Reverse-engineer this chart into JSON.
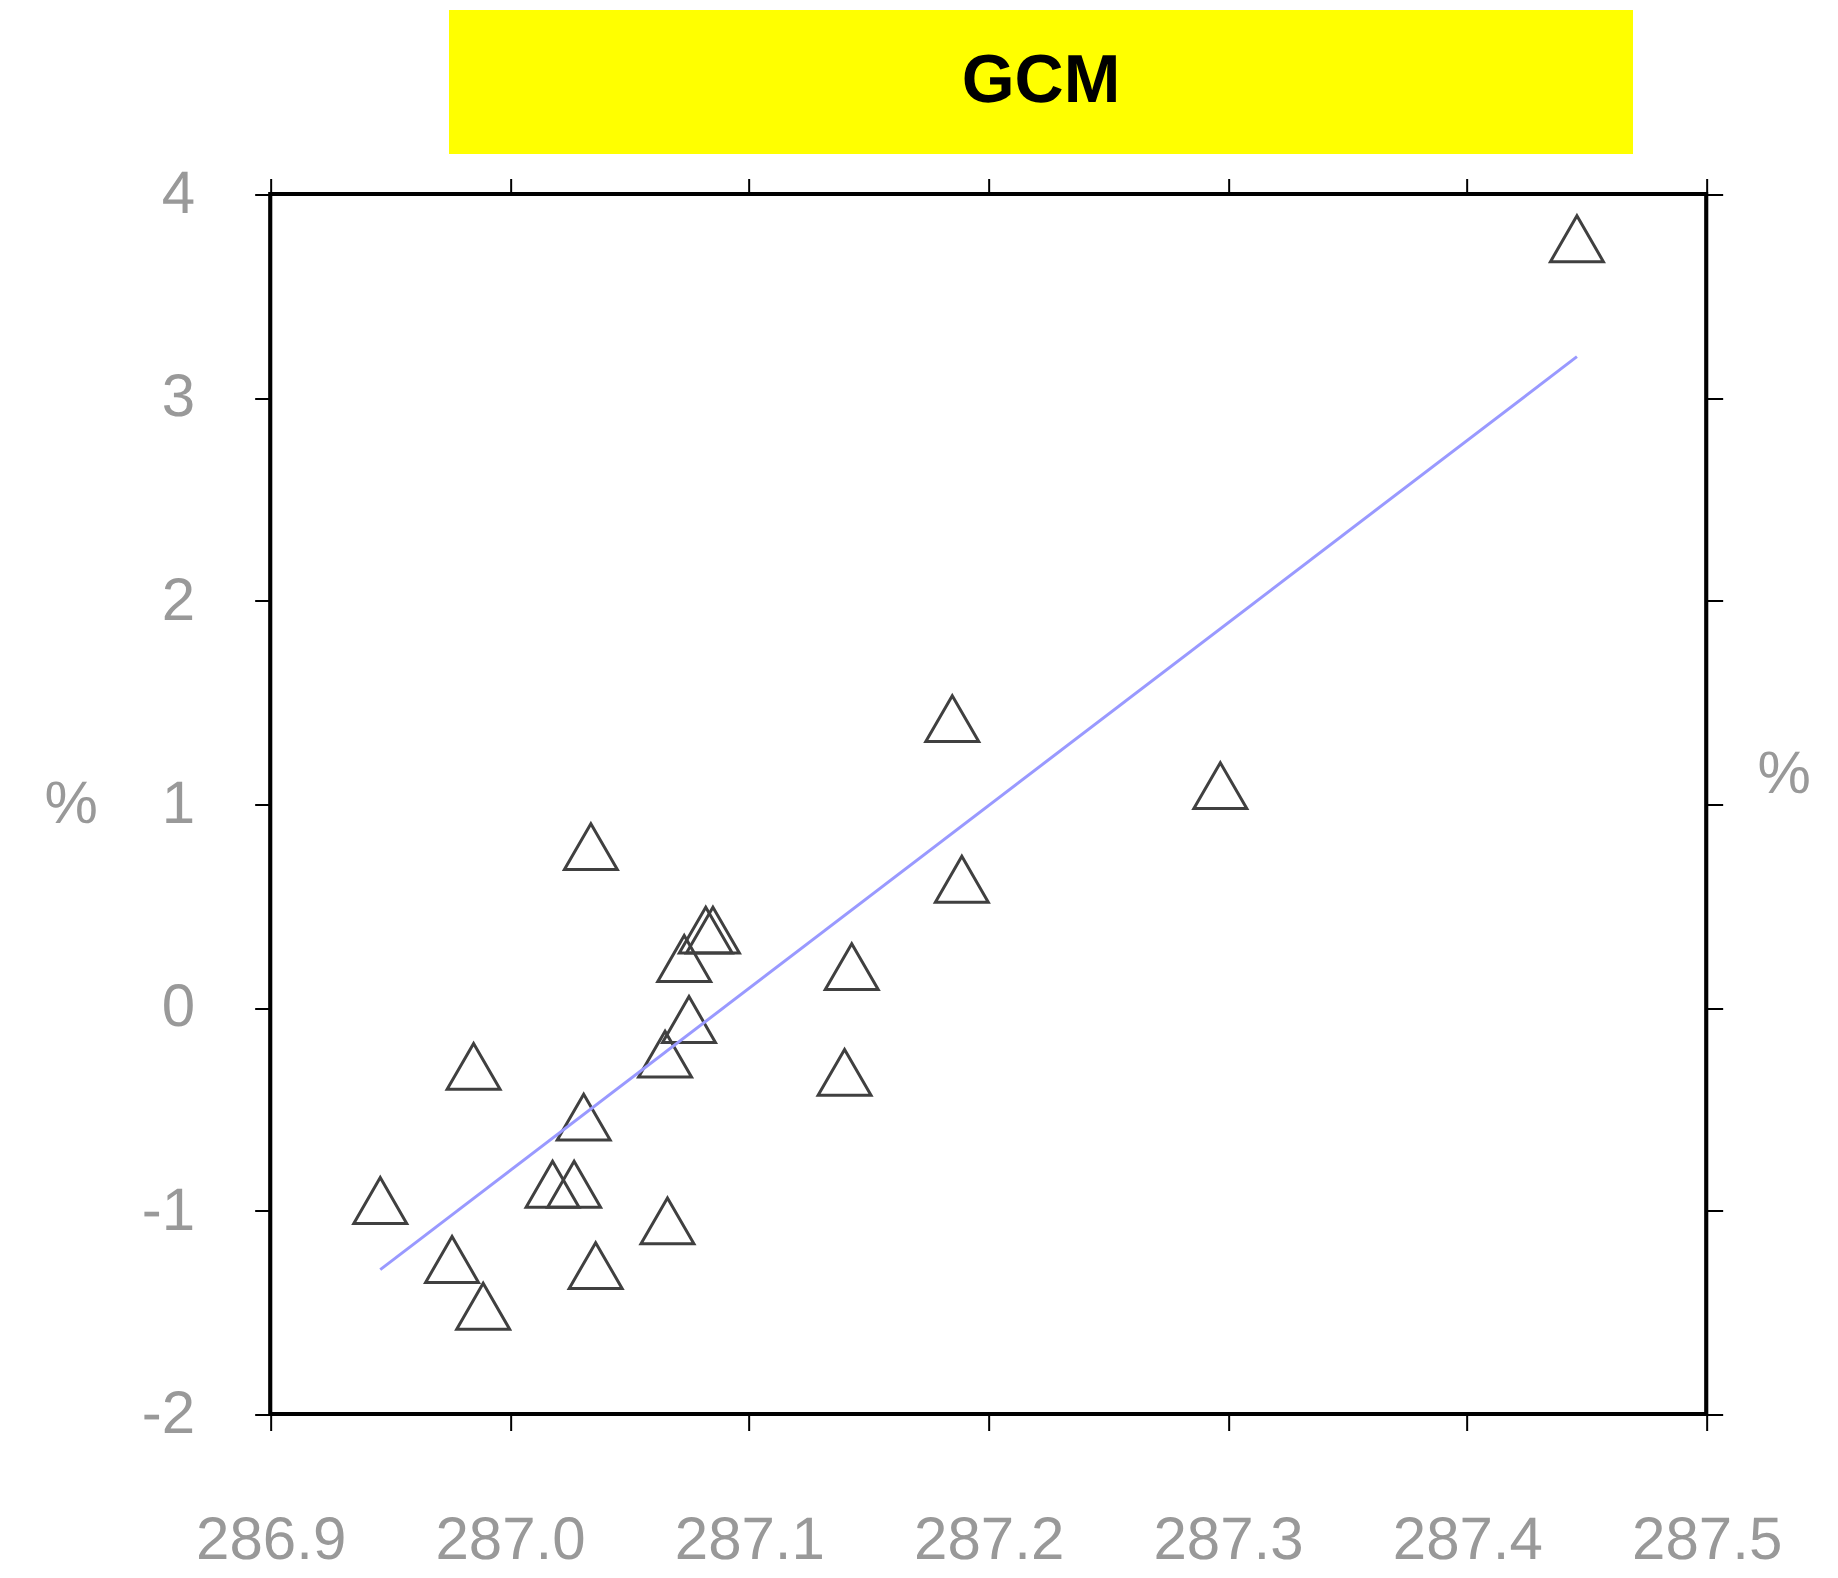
{
  "chart_data": {
    "type": "scatter",
    "title": "GCM",
    "ylabel": "%",
    "y2label": "%",
    "xlim": [
      286.9,
      287.5
    ],
    "xticks": [
      {
        "value": 286.9,
        "label": "286.9"
      },
      {
        "value": 287.0,
        "label": "287.0"
      },
      {
        "value": 287.1,
        "label": "287.1"
      },
      {
        "value": 287.2,
        "label": "287.2"
      },
      {
        "value": 287.3,
        "label": "287.3"
      },
      {
        "value": 287.4,
        "label": "287.4"
      },
      {
        "value": 287.5,
        "label": "287.5"
      }
    ],
    "ylim": [
      -2,
      4
    ],
    "yticks": [
      -2,
      -1,
      0,
      1,
      2,
      3,
      4
    ],
    "grid": false,
    "series": [
      {
        "marker": "triangle",
        "color": "#404040",
        "x": [
          286.946,
          286.976,
          286.989,
          286.985,
          287.034,
          287.018,
          287.027,
          287.031,
          287.036,
          287.066,
          287.065,
          287.075,
          287.073,
          287.082,
          287.085,
          287.143,
          287.14,
          287.189,
          287.185,
          287.297,
          287.446
        ],
        "values": [
          -0.95,
          -1.24,
          -1.47,
          -0.29,
          0.79,
          -0.87,
          -0.87,
          -0.54,
          -1.27,
          -1.05,
          -0.23,
          -0.06,
          0.24,
          0.38,
          0.38,
          0.2,
          -0.32,
          0.63,
          1.42,
          1.09,
          3.78
        ]
      },
      {
        "type": "line",
        "line_style": "solid",
        "color": "#9999ff",
        "x": [
          286.946,
          287.446
        ],
        "values": [
          -1.29,
          3.2
        ]
      }
    ]
  }
}
